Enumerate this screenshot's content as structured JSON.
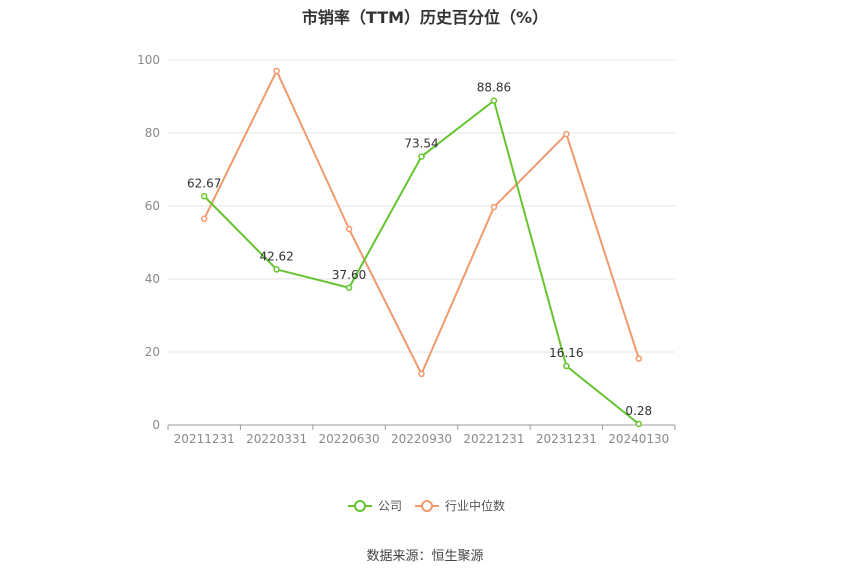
{
  "title": "市销率（TTM）历史百分位（%）",
  "source": "数据来源：恒生聚源",
  "colors": {
    "company": "#66c431",
    "industry": "#f09a6e",
    "grid": "#e6e6e6",
    "axis": "#999999"
  },
  "chart_data": {
    "type": "line",
    "title": "市销率（TTM）历史百分位（%）",
    "categories": [
      "20211231",
      "20220331",
      "20220630",
      "20220930",
      "20221231",
      "20231231",
      "20240130"
    ],
    "ylim": [
      0,
      100
    ],
    "yticks": [
      0,
      20,
      40,
      60,
      80,
      100
    ],
    "grid": true,
    "legend_position": "bottom",
    "series": [
      {
        "name": "公司",
        "color": "#66c431",
        "show_labels": true,
        "values": [
          62.67,
          42.62,
          37.6,
          73.54,
          88.86,
          16.16,
          0.28
        ],
        "labels": [
          "62.67",
          "42.62",
          "37.60",
          "73.54",
          "88.86",
          "16.16",
          "0.28"
        ]
      },
      {
        "name": "行业中位数",
        "color": "#f09a6e",
        "show_labels": false,
        "values": [
          56.5,
          97.0,
          53.7,
          14.0,
          59.7,
          79.7,
          18.2
        ]
      }
    ]
  }
}
